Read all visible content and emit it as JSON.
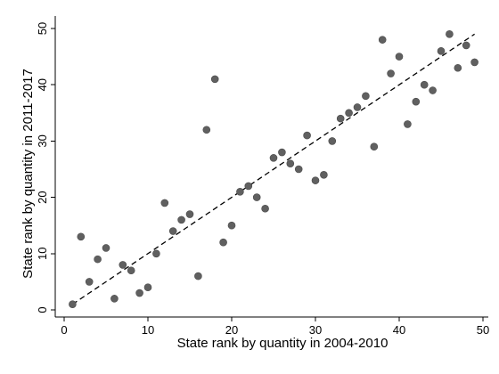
{
  "chart_data": {
    "type": "scatter",
    "title": "",
    "xlabel": "State rank by quantity in 2004-2010",
    "ylabel": "State rank by quantity in 2011-2017",
    "xlim": [
      0,
      50
    ],
    "ylim": [
      0,
      50
    ],
    "xticks": [
      "0",
      "10",
      "20",
      "30",
      "40",
      "50"
    ],
    "yticks": [
      "0",
      "10",
      "20",
      "30",
      "40",
      "50"
    ],
    "grid": false,
    "legend": "none",
    "point_color": "#606060",
    "line_color": "#000000",
    "points": [
      {
        "x": 1,
        "y": 1
      },
      {
        "x": 2,
        "y": 13
      },
      {
        "x": 3,
        "y": 5
      },
      {
        "x": 4,
        "y": 9
      },
      {
        "x": 5,
        "y": 11
      },
      {
        "x": 6,
        "y": 2
      },
      {
        "x": 7,
        "y": 8
      },
      {
        "x": 8,
        "y": 7
      },
      {
        "x": 9,
        "y": 3
      },
      {
        "x": 10,
        "y": 4
      },
      {
        "x": 11,
        "y": 10
      },
      {
        "x": 12,
        "y": 19
      },
      {
        "x": 13,
        "y": 14
      },
      {
        "x": 14,
        "y": 16
      },
      {
        "x": 15,
        "y": 17
      },
      {
        "x": 16,
        "y": 6
      },
      {
        "x": 17,
        "y": 32
      },
      {
        "x": 18,
        "y": 41
      },
      {
        "x": 19,
        "y": 12
      },
      {
        "x": 20,
        "y": 15
      },
      {
        "x": 21,
        "y": 21
      },
      {
        "x": 22,
        "y": 22
      },
      {
        "x": 23,
        "y": 20
      },
      {
        "x": 24,
        "y": 18
      },
      {
        "x": 25,
        "y": 27
      },
      {
        "x": 26,
        "y": 28
      },
      {
        "x": 27,
        "y": 26
      },
      {
        "x": 28,
        "y": 25
      },
      {
        "x": 29,
        "y": 31
      },
      {
        "x": 30,
        "y": 23
      },
      {
        "x": 31,
        "y": 24
      },
      {
        "x": 32,
        "y": 30
      },
      {
        "x": 33,
        "y": 34
      },
      {
        "x": 34,
        "y": 35
      },
      {
        "x": 35,
        "y": 36
      },
      {
        "x": 36,
        "y": 38
      },
      {
        "x": 37,
        "y": 29
      },
      {
        "x": 38,
        "y": 48
      },
      {
        "x": 39,
        "y": 42
      },
      {
        "x": 40,
        "y": 45
      },
      {
        "x": 41,
        "y": 33
      },
      {
        "x": 42,
        "y": 37
      },
      {
        "x": 43,
        "y": 40
      },
      {
        "x": 44,
        "y": 39
      },
      {
        "x": 45,
        "y": 46
      },
      {
        "x": 46,
        "y": 49
      },
      {
        "x": 47,
        "y": 43
      },
      {
        "x": 48,
        "y": 47
      },
      {
        "x": 49,
        "y": 44
      }
    ],
    "fit_line": {
      "x1": 1,
      "y1": 1,
      "x2": 49,
      "y2": 49,
      "style": "dashed"
    }
  }
}
